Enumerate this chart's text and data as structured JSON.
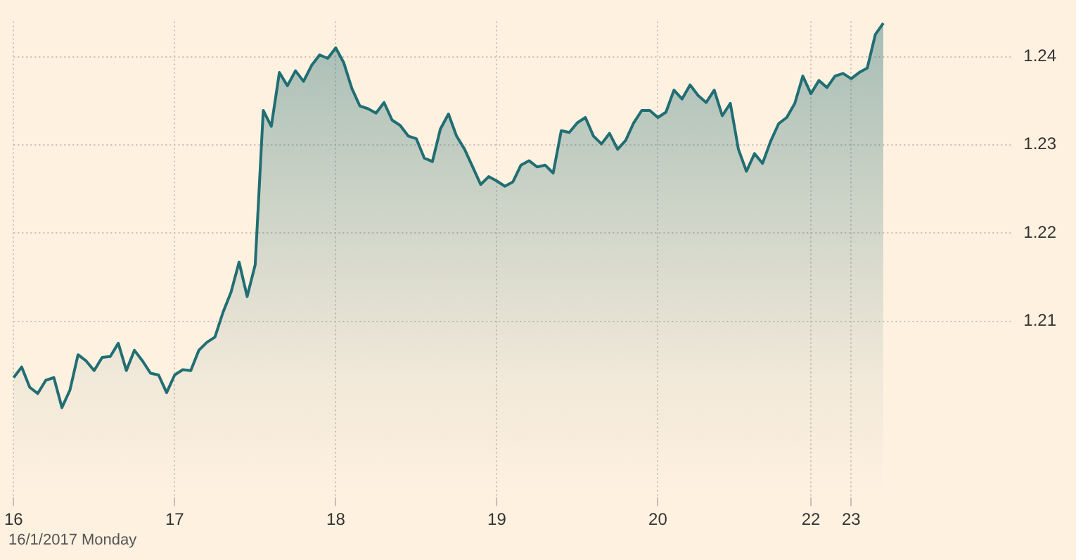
{
  "chart_data": {
    "type": "area",
    "annotations": [
      "16/1/2017 Monday"
    ],
    "categories": [
      "16",
      null,
      null,
      null,
      null,
      null,
      null,
      null,
      null,
      null,
      null,
      null,
      null,
      null,
      null,
      null,
      null,
      null,
      null,
      null,
      "17",
      null,
      null,
      null,
      null,
      null,
      null,
      null,
      null,
      null,
      null,
      null,
      null,
      null,
      null,
      null,
      null,
      null,
      null,
      null,
      "18",
      null,
      null,
      null,
      null,
      null,
      null,
      null,
      null,
      null,
      null,
      null,
      null,
      null,
      null,
      null,
      null,
      null,
      null,
      null,
      "19",
      null,
      null,
      null,
      null,
      null,
      null,
      null,
      null,
      null,
      null,
      null,
      null,
      null,
      null,
      null,
      null,
      null,
      null,
      null,
      "20",
      null,
      null,
      null,
      null,
      null,
      null,
      null,
      null,
      null,
      null,
      null,
      null,
      null,
      null,
      null,
      null,
      null,
      null,
      "22",
      null,
      null,
      null,
      null,
      "23",
      null,
      null,
      null,
      null,
      null,
      null,
      null,
      null,
      null,
      null,
      null,
      null,
      null,
      null,
      null,
      null,
      null,
      null,
      null,
      null
    ],
    "series": [
      {
        "color": "#216e73",
        "values": [
          1.2036,
          1.2048,
          1.2025,
          1.2018,
          1.2033,
          1.2036,
          1.2002,
          1.2022,
          1.2062,
          1.2055,
          1.2044,
          1.2059,
          1.206,
          1.2075,
          1.2044,
          1.2067,
          1.2055,
          1.2041,
          1.2039,
          1.2019,
          1.2039,
          1.2045,
          1.2044,
          1.2067,
          1.2076,
          1.2082,
          1.211,
          1.2133,
          1.2167,
          1.2128,
          1.2164,
          1.2339,
          1.2321,
          1.2382,
          1.2367,
          1.2384,
          1.2372,
          1.239,
          1.2402,
          1.2398,
          1.241,
          1.2393,
          1.2364,
          1.2344,
          1.2341,
          1.2336,
          1.2348,
          1.2328,
          1.2322,
          1.231,
          1.2307,
          1.2285,
          1.2281,
          1.2318,
          1.2335,
          1.231,
          1.2295,
          1.2275,
          1.2255,
          1.2264,
          1.2259,
          1.2253,
          1.2258,
          1.2277,
          1.2282,
          1.2275,
          1.2277,
          1.2268,
          1.2316,
          1.2314,
          1.2325,
          1.2331,
          1.231,
          1.2301,
          1.2313,
          1.2295,
          1.2305,
          1.2325,
          1.2339,
          1.2339,
          1.2331,
          1.2337,
          1.2362,
          1.2352,
          1.2368,
          1.2356,
          1.2348,
          1.2362,
          1.2333,
          1.2347,
          1.2295,
          1.227,
          1.229,
          1.2279,
          1.2304,
          1.2324,
          1.2331,
          1.2347,
          1.2378,
          1.2358,
          1.2373,
          1.2365,
          1.2378,
          1.2381,
          1.2375,
          1.2382,
          1.2387,
          1.2425,
          1.2438,
          null,
          null,
          null,
          null,
          null,
          null,
          null,
          null,
          null,
          null,
          null,
          null,
          null,
          null,
          null,
          null
        ]
      }
    ],
    "ylim": [
      1.19,
      1.244
    ],
    "yticks": [
      1.21,
      1.22,
      1.23,
      1.24
    ],
    "grid": true,
    "legend": false,
    "marker": "none",
    "line_style": "solid"
  }
}
